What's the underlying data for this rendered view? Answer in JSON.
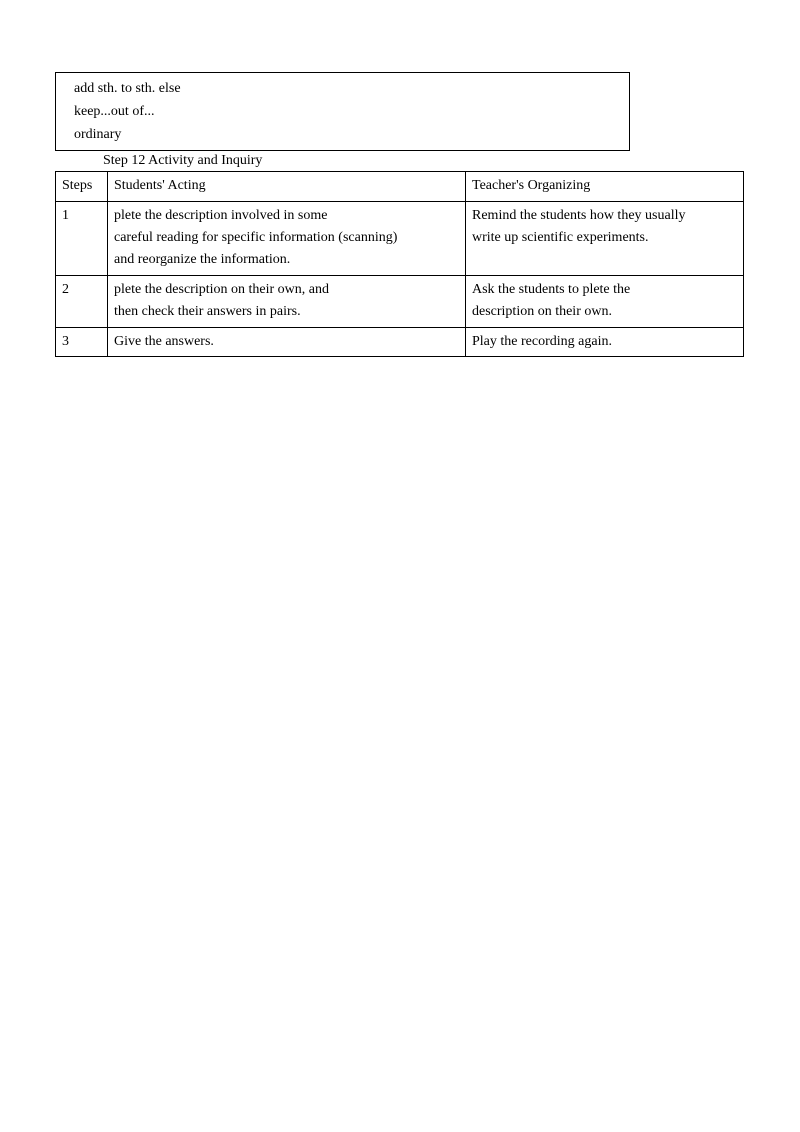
{
  "box": {
    "line1": "add sth. to sth. else",
    "line2": "keep...out of...",
    "line3": "ordinary"
  },
  "step_title": "Step 12 Activity and Inquiry",
  "table": {
    "headers": {
      "steps": "Steps",
      "students": "Students' Acting",
      "teacher": "Teacher's Organizing"
    },
    "rows": [
      {
        "n": "1",
        "students_lines": [
          "plete the description involved in some",
          "careful  reading  for  specific  information (scanning)",
          "and reorganize the information."
        ],
        "teacher_lines": [
          "Remind  the  students  how  they usually",
          "write up scientific experiments."
        ]
      },
      {
        "n": "2",
        "students_lines": [
          "plete the description on their own,  and",
          "then check their answers in pairs."
        ],
        "teacher_lines": [
          "Ask the students to plete the",
          "description on their own."
        ]
      },
      {
        "n": "3",
        "students_lines": [
          "Give the answers."
        ],
        "teacher_lines": [
          "Play the recording again."
        ]
      }
    ]
  }
}
